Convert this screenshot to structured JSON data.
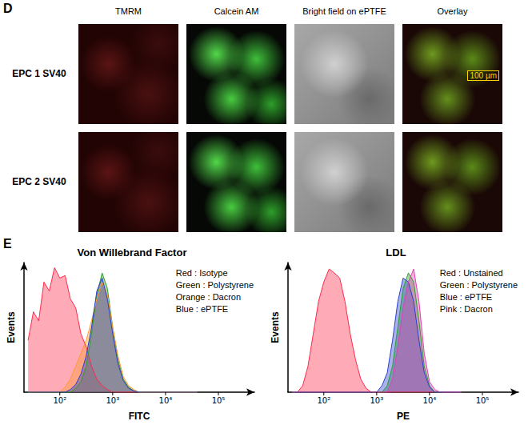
{
  "panel_d": {
    "label": "D",
    "columns": [
      "TMRM",
      "Calcein AM",
      "Bright field on ePTFE",
      "Overlay"
    ],
    "rows": [
      "EPC 1 SV40",
      "EPC 2 SV40"
    ],
    "scale_bar": "100 µm"
  },
  "panel_e": {
    "label": "E"
  },
  "chart_data": [
    {
      "type": "area",
      "title": "Von Willebrand Factor",
      "x_label": "FITC",
      "y_label": "Events",
      "log": "x",
      "grid": false,
      "legend": "upper right",
      "tick_labels": "x",
      "xlim": [
        21,
        480000
      ],
      "xticks": [
        {
          "value": 100,
          "label": "10²"
        },
        {
          "value": 1000,
          "label": "10³"
        },
        {
          "value": 10000,
          "label": "10⁴"
        },
        {
          "value": 100000,
          "label": "10⁵"
        }
      ],
      "ylim": [
        0,
        100
      ],
      "x": [
        25.1,
        31.6,
        39.8,
        50.1,
        63.1,
        79.4,
        100,
        126,
        158,
        200,
        251,
        316,
        398,
        501,
        631,
        794,
        1000,
        1259,
        1585,
        1995,
        2512,
        3162,
        3981,
        5012,
        6310,
        7943,
        10000,
        12589,
        15849,
        19953,
        25119,
        31623,
        39811
      ],
      "series": [
        {
          "name": "Red : Isotype",
          "color": "#ff2a4a",
          "values": [
            40,
            62,
            55,
            85,
            78,
            96,
            88,
            90,
            72,
            65,
            45,
            35,
            20,
            10,
            5,
            2,
            0,
            0,
            0,
            0,
            0,
            0,
            0,
            0,
            0,
            0,
            0,
            0,
            0,
            0,
            0,
            0,
            0
          ]
        },
        {
          "name": "Green : Polystyrene",
          "color": "#2e9e2e",
          "values": [
            0,
            0,
            0,
            0,
            0,
            0,
            0,
            0,
            0,
            3,
            8,
            20,
            45,
            75,
            92,
            80,
            50,
            25,
            10,
            4,
            1,
            0,
            0,
            0,
            0,
            0,
            0,
            0,
            0,
            0,
            0,
            0,
            0
          ]
        },
        {
          "name": "Orange : Dacron",
          "color": "#ff9a2e",
          "values": [
            0,
            0,
            0,
            0,
            0,
            0,
            0,
            4,
            10,
            20,
            30,
            40,
            55,
            72,
            85,
            75,
            50,
            28,
            12,
            5,
            2,
            0,
            0,
            0,
            0,
            0,
            0,
            0,
            0,
            0,
            0,
            0,
            0
          ]
        },
        {
          "name": "Blue : ePTFE",
          "color": "#2a3fcf",
          "values": [
            0,
            0,
            0,
            0,
            0,
            0,
            0,
            0,
            2,
            6,
            14,
            28,
            50,
            78,
            88,
            72,
            45,
            22,
            9,
            3,
            1,
            0,
            0,
            0,
            0,
            0,
            0,
            0,
            0,
            0,
            0,
            0,
            0
          ]
        }
      ]
    },
    {
      "type": "area",
      "title": "LDL",
      "x_label": "PE",
      "y_label": "Events",
      "log": "x",
      "grid": false,
      "legend": "upper right",
      "tick_labels": "x",
      "xlim": [
        21,
        480000
      ],
      "xticks": [
        {
          "value": 100,
          "label": "10²"
        },
        {
          "value": 1000,
          "label": "10³"
        },
        {
          "value": 10000,
          "label": "10⁴"
        },
        {
          "value": 100000,
          "label": "10⁵"
        }
      ],
      "ylim": [
        0,
        100
      ],
      "x": [
        25.1,
        31.6,
        39.8,
        50.1,
        63.1,
        79.4,
        100,
        126,
        158,
        200,
        251,
        316,
        398,
        501,
        631,
        794,
        1000,
        1259,
        1585,
        1995,
        2512,
        3162,
        3981,
        5012,
        6310,
        7943,
        10000,
        12589,
        15849,
        19953,
        25119,
        31623,
        39811
      ],
      "series": [
        {
          "name": "Red : Unstained",
          "color": "#ff2a4a",
          "values": [
            0,
            0,
            5,
            20,
            45,
            70,
            85,
            95,
            92,
            88,
            70,
            45,
            25,
            10,
            3,
            0,
            0,
            0,
            0,
            0,
            0,
            0,
            0,
            0,
            0,
            0,
            0,
            0,
            0,
            0,
            0,
            0,
            0
          ]
        },
        {
          "name": "Green : Polystyrene",
          "color": "#2e9e2e",
          "values": [
            0,
            0,
            0,
            0,
            0,
            0,
            0,
            0,
            0,
            0,
            0,
            0,
            0,
            0,
            0,
            0,
            0,
            0,
            5,
            20,
            50,
            80,
            92,
            85,
            55,
            20,
            5,
            0,
            0,
            0,
            0,
            0,
            0
          ]
        },
        {
          "name": "Blue : ePTFE",
          "color": "#2a3fcf",
          "values": [
            0,
            0,
            0,
            0,
            0,
            0,
            0,
            0,
            0,
            0,
            0,
            0,
            0,
            0,
            0,
            0,
            0,
            5,
            15,
            40,
            70,
            88,
            85,
            70,
            40,
            15,
            4,
            0,
            0,
            0,
            0,
            0,
            0
          ]
        },
        {
          "name": "Pink : Dacron",
          "color": "#e040b0",
          "values": [
            0,
            0,
            0,
            0,
            0,
            0,
            0,
            0,
            0,
            0,
            0,
            0,
            0,
            0,
            0,
            0,
            0,
            0,
            0,
            10,
            35,
            65,
            85,
            95,
            70,
            30,
            8,
            2,
            0,
            0,
            0,
            0,
            0
          ]
        }
      ]
    }
  ]
}
